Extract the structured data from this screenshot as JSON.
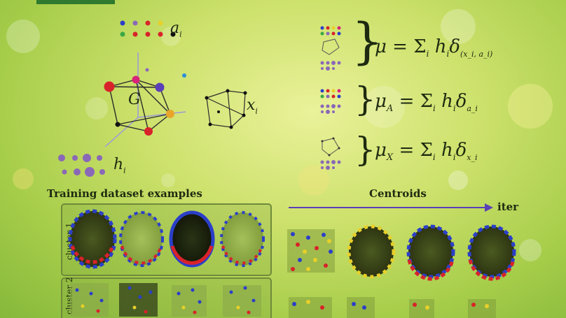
{
  "symbols": {
    "a_label": "a",
    "a_sub": "i",
    "g_label": "G",
    "x_label": "x",
    "x_sub": "i",
    "h_label": "h",
    "h_sub": "i"
  },
  "formulas": {
    "mu": {
      "lhs": "μ",
      "rhs": "= Σ",
      "term": "h",
      "sub": "i",
      "delta": "δ",
      "delta_sub": "(x_i, a_i)"
    },
    "mu_a": {
      "lhs": "μ",
      "lhs_sub": "A",
      "rhs": "= Σ",
      "term": "h",
      "sub": "i",
      "delta": "δ",
      "delta_sub": "a_i"
    },
    "mu_x": {
      "lhs": "μ",
      "lhs_sub": "X",
      "rhs": "= Σ",
      "term": "h",
      "sub": "i",
      "delta": "δ",
      "delta_sub": "x_i"
    }
  },
  "sections": {
    "training_title": "Training dataset examples",
    "centroids_title": "Centroids",
    "iter_label": "iter",
    "cluster1": "cluster 1",
    "cluster2": "cluster 2"
  },
  "colors": {
    "node_red": "#d8232a",
    "node_blue": "#2b3fc9",
    "node_yellow": "#e8d02a",
    "node_purple": "#8a68b8",
    "box_border": "#6f8a3a"
  }
}
